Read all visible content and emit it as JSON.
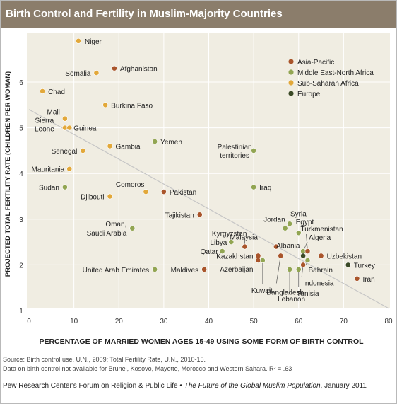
{
  "title": "Birth Control and Fertility in Muslim-Majority Countries",
  "source_line1": "Source: Birth control use, U.N., 2009; Total Fertility Rate, U.N., 2010-15.",
  "source_line2": "Data on birth control not available for Brunei, Kosovo, Mayotte, Morocco and Western Sahara. R² = .63",
  "credit_org": "Pew Research Center's Forum on Religion & Public Life •",
  "credit_title": "The Future of the Global Muslim Population",
  "credit_date": ", January 2011",
  "colors": {
    "Asia-Pacific": "#a9552b",
    "Middle East-North Africa": "#92a552",
    "Sub-Saharan Africa": "#e2a83a",
    "Europe": "#3b4a27",
    "trend": "#c6c6c6",
    "grid": "#ffffff",
    "plot_bg": "#f0ede2"
  },
  "chart_data": {
    "type": "scatter",
    "xlabel": "PERCENTAGE OF MARRIED WOMEN AGES 15-49 USING SOME FORM OF BIRTH CONTROL",
    "ylabel": "PROJECTED TOTAL FERTILITY RATE (CHILDREN PER WOMAN)",
    "xlim": [
      0,
      80
    ],
    "ylim": [
      1,
      7
    ],
    "xticks": [
      0,
      10,
      20,
      30,
      40,
      50,
      60,
      70,
      80
    ],
    "yticks": [
      1,
      2,
      3,
      4,
      5,
      6
    ],
    "grid": true,
    "legend_position": "top-right",
    "legend": [
      "Asia-Pacific",
      "Middle East-North Africa",
      "Sub-Saharan Africa",
      "Europe"
    ],
    "trendline": {
      "x": [
        0,
        80
      ],
      "y": [
        5.4,
        1.05
      ]
    },
    "r_squared": ".63",
    "points": [
      {
        "label": "Niger",
        "x": 11,
        "y": 6.9,
        "region": "Sub-Saharan Africa"
      },
      {
        "label": "Afghanistan",
        "x": 19,
        "y": 6.3,
        "region": "Asia-Pacific"
      },
      {
        "label": "Somalia",
        "x": 15,
        "y": 6.2,
        "region": "Sub-Saharan Africa"
      },
      {
        "label": "Chad",
        "x": 3,
        "y": 5.8,
        "region": "Sub-Saharan Africa"
      },
      {
        "label": "Burkina Faso",
        "x": 17,
        "y": 5.5,
        "region": "Sub-Saharan Africa"
      },
      {
        "label": "Mali",
        "x": 8,
        "y": 5.2,
        "region": "Sub-Saharan Africa"
      },
      {
        "label": "Sierra Leone",
        "x": 8,
        "y": 5.0,
        "region": "Sub-Saharan Africa"
      },
      {
        "label": "Guinea",
        "x": 9,
        "y": 5.0,
        "region": "Sub-Saharan Africa"
      },
      {
        "label": "Yemen",
        "x": 28,
        "y": 4.7,
        "region": "Middle East-North Africa"
      },
      {
        "label": "Gambia",
        "x": 18,
        "y": 4.6,
        "region": "Sub-Saharan Africa"
      },
      {
        "label": "Senegal",
        "x": 12,
        "y": 4.5,
        "region": "Sub-Saharan Africa"
      },
      {
        "label": "Palestinian territories",
        "x": 50,
        "y": 4.5,
        "region": "Middle East-North Africa"
      },
      {
        "label": "Mauritania",
        "x": 9,
        "y": 4.1,
        "region": "Sub-Saharan Africa"
      },
      {
        "label": "Sudan",
        "x": 8,
        "y": 3.7,
        "region": "Middle East-North Africa"
      },
      {
        "label": "Iraq",
        "x": 50,
        "y": 3.7,
        "region": "Middle East-North Africa"
      },
      {
        "label": "Comoros",
        "x": 26,
        "y": 3.6,
        "region": "Sub-Saharan Africa"
      },
      {
        "label": "Pakistan",
        "x": 30,
        "y": 3.6,
        "region": "Asia-Pacific"
      },
      {
        "label": "Djibouti",
        "x": 18,
        "y": 3.5,
        "region": "Sub-Saharan Africa"
      },
      {
        "label": "Tajikistan",
        "x": 38,
        "y": 3.1,
        "region": "Asia-Pacific"
      },
      {
        "label": "Syria",
        "x": 58,
        "y": 2.9,
        "region": "Middle East-North Africa"
      },
      {
        "label": "Oman, Saudi Arabia",
        "x": 23,
        "y": 2.8,
        "region": "Middle East-North Africa"
      },
      {
        "label": "Jordan",
        "x": 57,
        "y": 2.8,
        "region": "Middle East-North Africa"
      },
      {
        "label": "Egypt",
        "x": 60,
        "y": 2.7,
        "region": "Middle East-North Africa"
      },
      {
        "label": "Libya",
        "x": 45,
        "y": 2.5,
        "region": "Middle East-North Africa"
      },
      {
        "label": "Kyrgyzstan",
        "x": 48,
        "y": 2.4,
        "region": "Asia-Pacific"
      },
      {
        "label": "Malaysia",
        "x": 55,
        "y": 2.4,
        "region": "Asia-Pacific"
      },
      {
        "label": "Algeria",
        "x": 61,
        "y": 2.3,
        "region": "Middle East-North Africa"
      },
      {
        "label": "Turkmenistan",
        "x": 62,
        "y": 2.3,
        "region": "Asia-Pacific"
      },
      {
        "label": "Qatar",
        "x": 43,
        "y": 2.3,
        "region": "Middle East-North Africa"
      },
      {
        "label": "Albania",
        "x": 61,
        "y": 2.2,
        "region": "Europe"
      },
      {
        "label": "Uzbekistan",
        "x": 65,
        "y": 2.2,
        "region": "Asia-Pacific"
      },
      {
        "label": "Kazakhstan",
        "x": 51,
        "y": 2.2,
        "region": "Asia-Pacific"
      },
      {
        "label": "Bangladesh",
        "x": 56,
        "y": 2.2,
        "region": "Asia-Pacific"
      },
      {
        "label": "Azerbaijan",
        "x": 51,
        "y": 2.1,
        "region": "Asia-Pacific"
      },
      {
        "label": "Kuwait",
        "x": 52,
        "y": 2.1,
        "region": "Middle East-North Africa"
      },
      {
        "label": "Bahrain",
        "x": 62,
        "y": 2.1,
        "region": "Middle East-North Africa"
      },
      {
        "label": "Indonesia",
        "x": 61,
        "y": 2.0,
        "region": "Asia-Pacific"
      },
      {
        "label": "Turkey",
        "x": 71,
        "y": 2.0,
        "region": "Europe"
      },
      {
        "label": "United Arab Emirates",
        "x": 28,
        "y": 1.9,
        "region": "Middle East-North Africa"
      },
      {
        "label": "Maldives",
        "x": 39,
        "y": 1.9,
        "region": "Asia-Pacific"
      },
      {
        "label": "Lebanon",
        "x": 58,
        "y": 1.9,
        "region": "Middle East-North Africa"
      },
      {
        "label": "Tunisia",
        "x": 60,
        "y": 1.9,
        "region": "Middle East-North Africa"
      },
      {
        "label": "Iran",
        "x": 73,
        "y": 1.7,
        "region": "Asia-Pacific"
      }
    ]
  }
}
